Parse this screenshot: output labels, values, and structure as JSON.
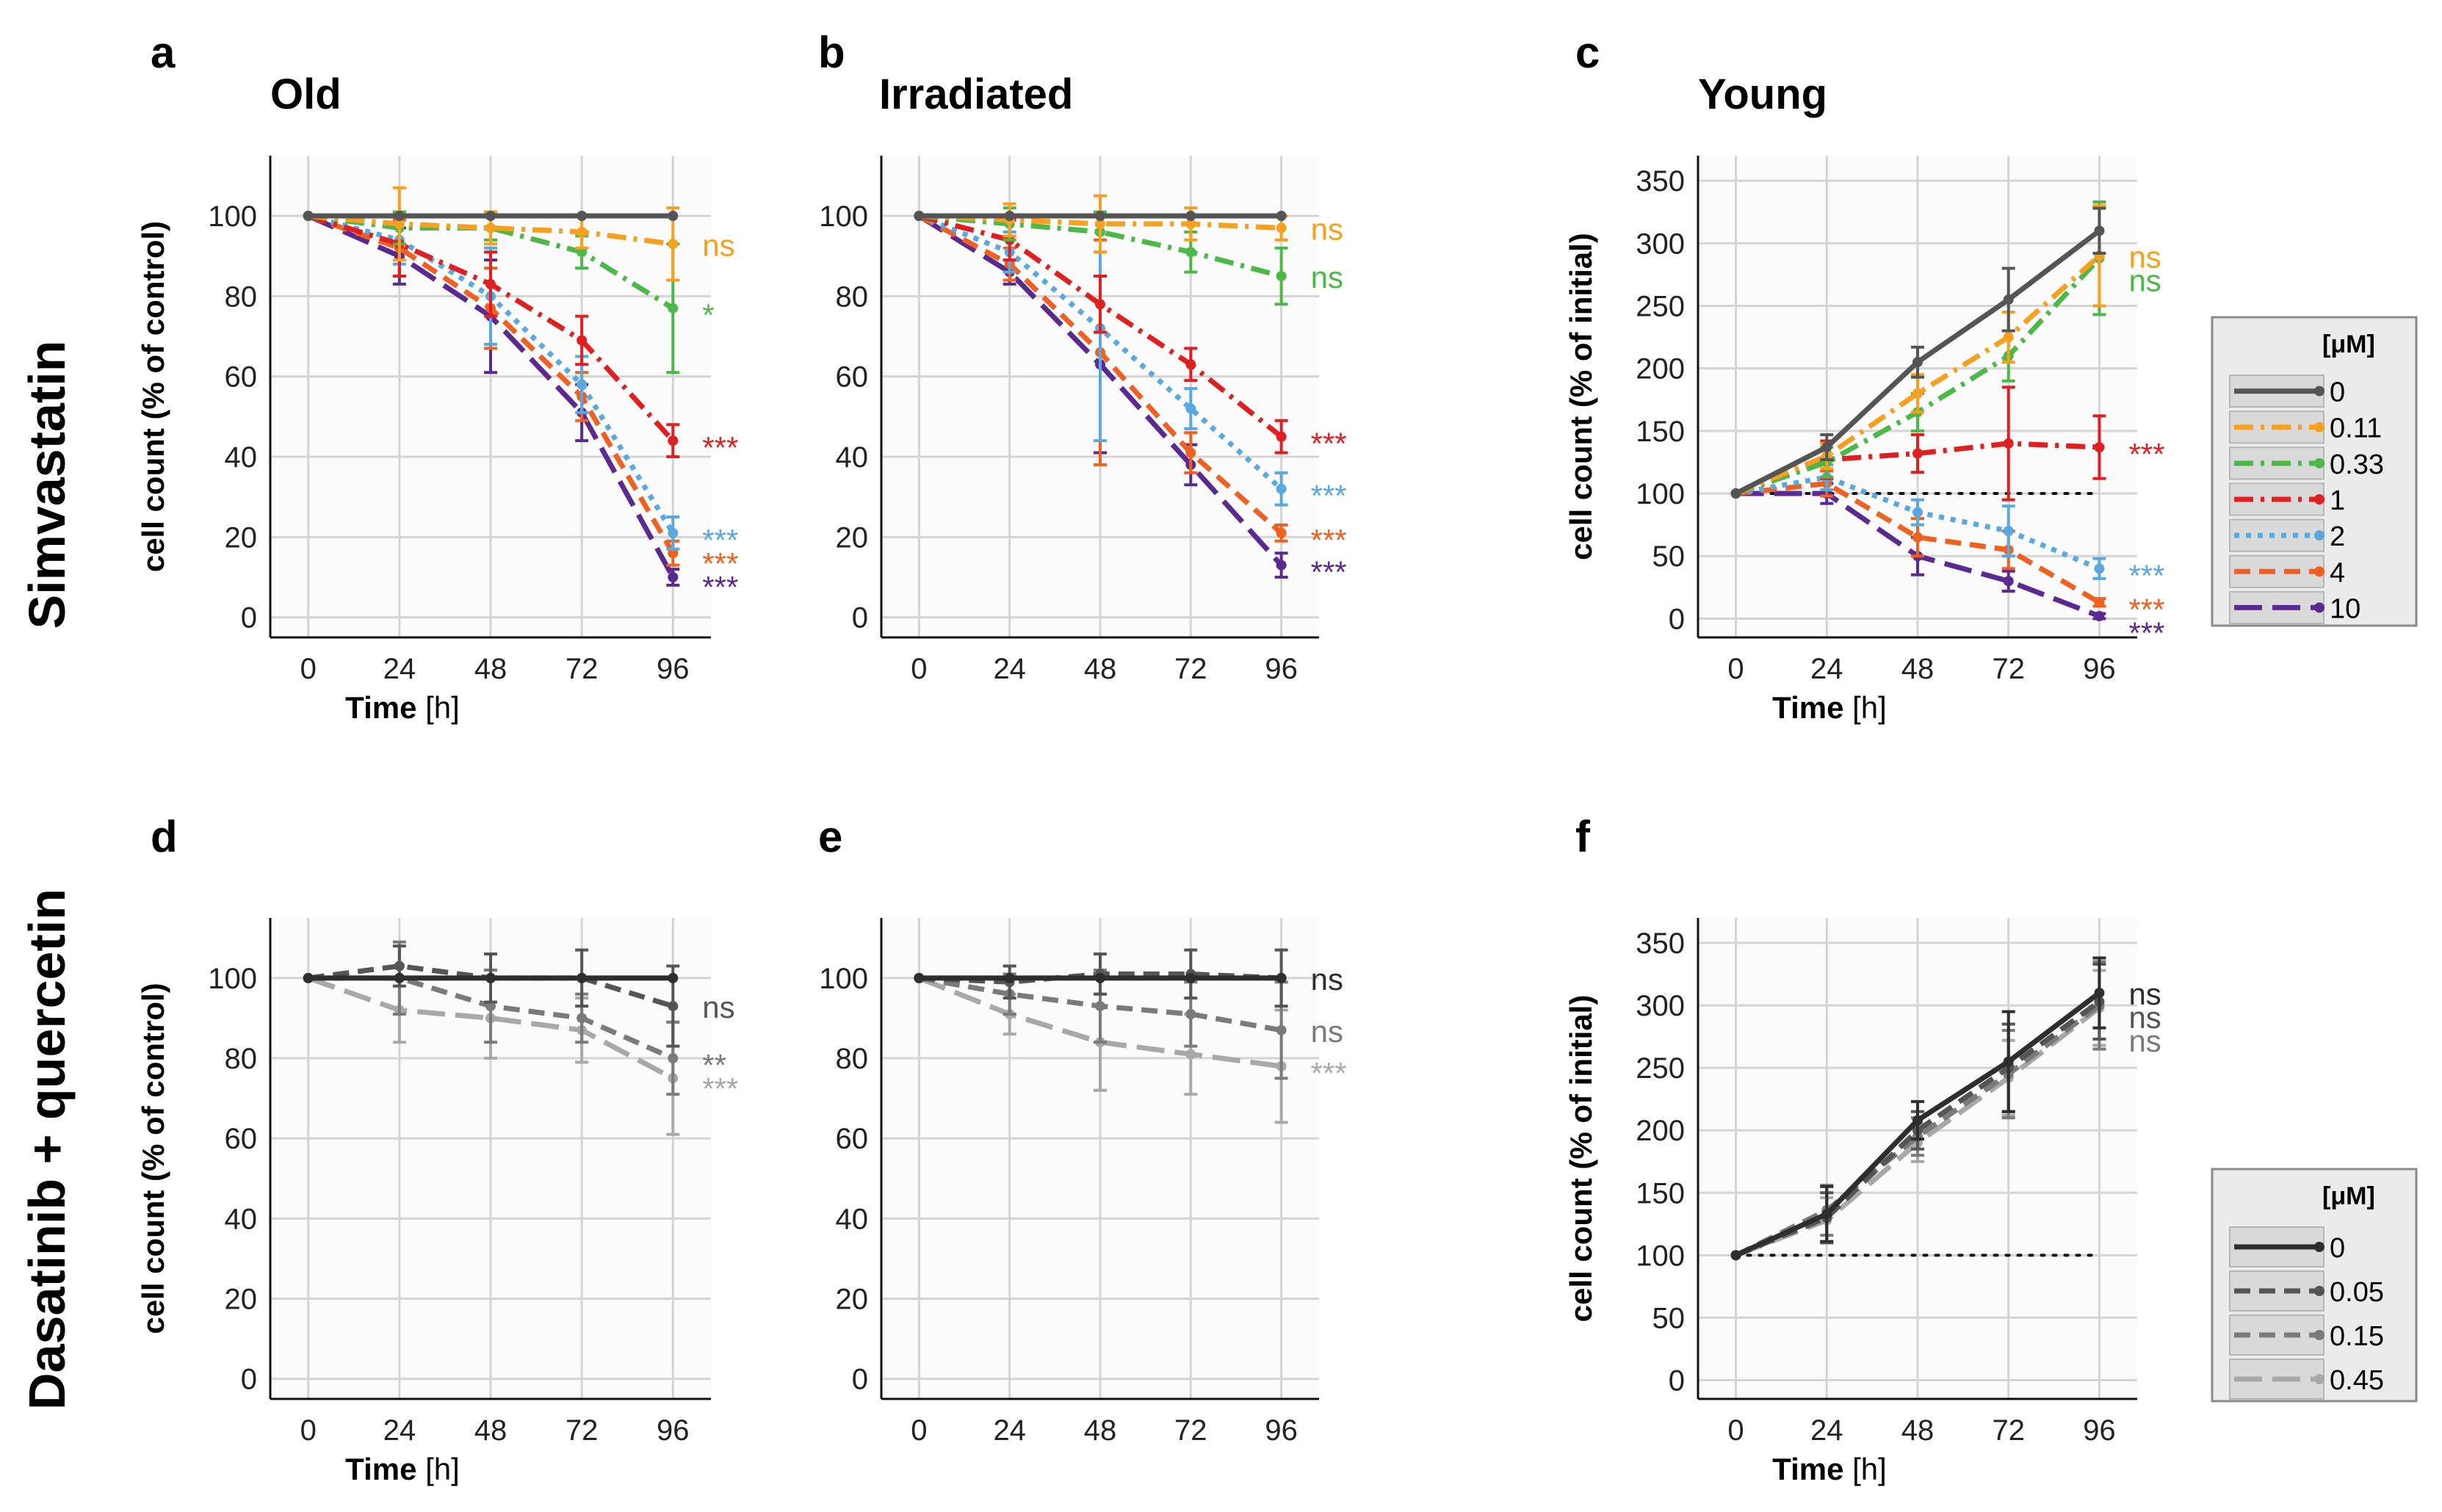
{
  "row_labels": [
    "Simvastatin",
    "Dasatinib + quercetin"
  ],
  "legends": [
    {
      "title": "[μM]",
      "items": [
        {
          "label": "0",
          "color": "#555555",
          "dash": "solid"
        },
        {
          "label": "0.11",
          "color": "#f5a020",
          "dash": "dashdot"
        },
        {
          "label": "0.33",
          "color": "#4cb848",
          "dash": "dashdot"
        },
        {
          "label": "1",
          "color": "#e02020",
          "dash": "dashdot"
        },
        {
          "label": "2",
          "color": "#5aa8e0",
          "dash": "dotted"
        },
        {
          "label": "4",
          "color": "#f06020",
          "dash": "dashed"
        },
        {
          "label": "10",
          "color": "#5a2a90",
          "dash": "longdash"
        }
      ]
    },
    {
      "title": "[μM]",
      "items": [
        {
          "label": "0",
          "color": "#2e2e2e",
          "dash": "solid"
        },
        {
          "label": "0.05",
          "color": "#555555",
          "dash": "dashed"
        },
        {
          "label": "0.15",
          "color": "#7a7a7a",
          "dash": "dashed"
        },
        {
          "label": "0.45",
          "color": "#a8a8a8",
          "dash": "longdash"
        }
      ]
    }
  ],
  "chart_data": [
    {
      "id": "a",
      "type": "line",
      "title": "Old",
      "xlabel_bold": "Time",
      "xlabel_unit": "[h]",
      "ylabel": "cell count (% of control)",
      "x": [
        0,
        24,
        48,
        72,
        96
      ],
      "xlim": [
        -10,
        106
      ],
      "ylim": [
        -5,
        115
      ],
      "yticks": [
        0,
        20,
        40,
        60,
        80,
        100
      ],
      "legend": 0,
      "series": [
        {
          "name": "0",
          "values": [
            100,
            100,
            100,
            100,
            100
          ],
          "errors": [
            0,
            0,
            0,
            0,
            0
          ],
          "sig": ""
        },
        {
          "name": "0.11",
          "values": [
            100,
            98,
            97,
            96,
            93
          ],
          "errors": [
            0,
            9,
            4,
            4,
            9
          ],
          "sig": "ns"
        },
        {
          "name": "0.33",
          "values": [
            100,
            97,
            97,
            91,
            77
          ],
          "errors": [
            0,
            4,
            3,
            4,
            16
          ],
          "sig": "*"
        },
        {
          "name": "1",
          "values": [
            100,
            93,
            83,
            69,
            44
          ],
          "errors": [
            0,
            8,
            8,
            6,
            4
          ],
          "sig": "***"
        },
        {
          "name": "2",
          "values": [
            100,
            94,
            80,
            58,
            21
          ],
          "errors": [
            0,
            6,
            12,
            7,
            4
          ],
          "sig": "***"
        },
        {
          "name": "4",
          "values": [
            100,
            92,
            77,
            55,
            16
          ],
          "errors": [
            0,
            7,
            10,
            6,
            3
          ],
          "sig": "***"
        },
        {
          "name": "10",
          "values": [
            100,
            90,
            75,
            51,
            10
          ],
          "errors": [
            0,
            7,
            14,
            7,
            2
          ],
          "sig": "***"
        }
      ]
    },
    {
      "id": "b",
      "type": "line",
      "title": "Irradiated",
      "xlabel_bold": "",
      "xlabel_unit": "",
      "ylabel": "",
      "x": [
        0,
        24,
        48,
        72,
        96
      ],
      "xlim": [
        -10,
        106
      ],
      "ylim": [
        -5,
        115
      ],
      "yticks": [
        0,
        20,
        40,
        60,
        80,
        100
      ],
      "legend": 0,
      "series": [
        {
          "name": "0",
          "values": [
            100,
            100,
            100,
            100,
            100
          ],
          "errors": [
            0,
            0,
            0,
            0,
            0
          ],
          "sig": ""
        },
        {
          "name": "0.11",
          "values": [
            100,
            99,
            98,
            98,
            97
          ],
          "errors": [
            0,
            4,
            7,
            4,
            3
          ],
          "sig": "ns"
        },
        {
          "name": "0.33",
          "values": [
            100,
            98,
            96,
            91,
            85
          ],
          "errors": [
            0,
            4,
            5,
            5,
            7
          ],
          "sig": "ns"
        },
        {
          "name": "1",
          "values": [
            100,
            94,
            78,
            63,
            45
          ],
          "errors": [
            0,
            5,
            7,
            4,
            4
          ],
          "sig": "***"
        },
        {
          "name": "2",
          "values": [
            100,
            91,
            72,
            52,
            32
          ],
          "errors": [
            0,
            5,
            28,
            5,
            4
          ],
          "sig": "***"
        },
        {
          "name": "4",
          "values": [
            100,
            88,
            66,
            41,
            21
          ],
          "errors": [
            0,
            4,
            28,
            5,
            2
          ],
          "sig": "***"
        },
        {
          "name": "10",
          "values": [
            100,
            86,
            63,
            38,
            13
          ],
          "errors": [
            0,
            3,
            22,
            5,
            3
          ],
          "sig": "***"
        }
      ]
    },
    {
      "id": "c",
      "type": "line",
      "title": "Young",
      "xlabel_bold": "Time",
      "xlabel_unit": "[h]",
      "ylabel": "cell count (% of initial)",
      "x": [
        0,
        24,
        48,
        72,
        96
      ],
      "xlim": [
        -10,
        106
      ],
      "ylim": [
        -15,
        370
      ],
      "yticks": [
        0,
        50,
        100,
        150,
        200,
        250,
        300,
        350
      ],
      "legend": 0,
      "reference_line": 100,
      "series": [
        {
          "name": "0",
          "values": [
            100,
            137,
            205,
            255,
            310
          ],
          "errors": [
            0,
            10,
            12,
            25,
            18
          ],
          "sig": ""
        },
        {
          "name": "0.11",
          "values": [
            100,
            130,
            180,
            225,
            290
          ],
          "errors": [
            0,
            10,
            15,
            20,
            40
          ],
          "sig": "ns"
        },
        {
          "name": "0.33",
          "values": [
            100,
            125,
            165,
            210,
            288
          ],
          "errors": [
            0,
            12,
            15,
            20,
            45
          ],
          "sig": "ns"
        },
        {
          "name": "1",
          "values": [
            100,
            127,
            132,
            140,
            137
          ],
          "errors": [
            0,
            15,
            15,
            45,
            25
          ],
          "sig": "***"
        },
        {
          "name": "2",
          "values": [
            100,
            113,
            85,
            70,
            40
          ],
          "errors": [
            0,
            10,
            10,
            20,
            8
          ],
          "sig": "***"
        },
        {
          "name": "4",
          "values": [
            100,
            108,
            65,
            55,
            13
          ],
          "errors": [
            0,
            10,
            15,
            15,
            3
          ],
          "sig": "***"
        },
        {
          "name": "10",
          "values": [
            100,
            100,
            50,
            30,
            2
          ],
          "errors": [
            0,
            8,
            15,
            8,
            2
          ],
          "sig": "***"
        }
      ]
    },
    {
      "id": "d",
      "type": "line",
      "title": "",
      "xlabel_bold": "Time",
      "xlabel_unit": "[h]",
      "ylabel": "cell count (% of control)",
      "x": [
        0,
        24,
        48,
        72,
        96
      ],
      "xlim": [
        -10,
        106
      ],
      "ylim": [
        -5,
        115
      ],
      "yticks": [
        0,
        20,
        40,
        60,
        80,
        100
      ],
      "legend": 1,
      "series": [
        {
          "name": "0",
          "values": [
            100,
            100,
            100,
            100,
            100
          ],
          "errors": [
            0,
            0,
            0,
            0,
            0
          ],
          "sig": ""
        },
        {
          "name": "0.05",
          "values": [
            100,
            103,
            100,
            100,
            93
          ],
          "errors": [
            0,
            5,
            6,
            7,
            10
          ],
          "sig": "ns"
        },
        {
          "name": "0.15",
          "values": [
            100,
            100,
            93,
            90,
            80
          ],
          "errors": [
            0,
            9,
            9,
            6,
            9
          ],
          "sig": "**"
        },
        {
          "name": "0.45",
          "values": [
            100,
            92,
            90,
            87,
            75
          ],
          "errors": [
            0,
            8,
            10,
            8,
            14
          ],
          "sig": "***"
        }
      ]
    },
    {
      "id": "e",
      "type": "line",
      "title": "",
      "xlabel_bold": "",
      "xlabel_unit": "",
      "ylabel": "",
      "x": [
        0,
        24,
        48,
        72,
        96
      ],
      "xlim": [
        -10,
        106
      ],
      "ylim": [
        -5,
        115
      ],
      "yticks": [
        0,
        20,
        40,
        60,
        80,
        100
      ],
      "legend": 1,
      "series": [
        {
          "name": "0",
          "values": [
            100,
            100,
            100,
            100,
            100
          ],
          "errors": [
            0,
            0,
            0,
            0,
            0
          ],
          "sig": "ns"
        },
        {
          "name": "0.05",
          "values": [
            100,
            99,
            101,
            101,
            100
          ],
          "errors": [
            0,
            4,
            5,
            6,
            7
          ],
          "sig": ""
        },
        {
          "name": "0.15",
          "values": [
            100,
            96,
            93,
            91,
            87
          ],
          "errors": [
            0,
            5,
            9,
            8,
            12
          ],
          "sig": "ns"
        },
        {
          "name": "0.45",
          "values": [
            100,
            91,
            84,
            81,
            78
          ],
          "errors": [
            0,
            5,
            12,
            10,
            14
          ],
          "sig": "***"
        }
      ]
    },
    {
      "id": "f",
      "type": "line",
      "title": "",
      "xlabel_bold": "Time",
      "xlabel_unit": "[h]",
      "ylabel": "cell count (% of initial)",
      "x": [
        0,
        24,
        48,
        72,
        96
      ],
      "xlim": [
        -10,
        106
      ],
      "ylim": [
        -15,
        370
      ],
      "yticks": [
        0,
        50,
        100,
        150,
        200,
        250,
        300,
        350
      ],
      "legend": 1,
      "reference_line": 100,
      "series": [
        {
          "name": "0",
          "values": [
            100,
            133,
            208,
            255,
            310
          ],
          "errors": [
            0,
            22,
            15,
            40,
            28
          ],
          "sig": "ns"
        },
        {
          "name": "0.05",
          "values": [
            100,
            130,
            200,
            250,
            303
          ],
          "errors": [
            0,
            20,
            15,
            35,
            30
          ],
          "sig": "ns"
        },
        {
          "name": "0.15",
          "values": [
            100,
            136,
            195,
            245,
            300
          ],
          "errors": [
            0,
            20,
            15,
            35,
            35
          ],
          "sig": "ns"
        },
        {
          "name": "0.45",
          "values": [
            100,
            128,
            190,
            242,
            298
          ],
          "errors": [
            0,
            18,
            15,
            30,
            30
          ],
          "sig": ""
        }
      ]
    }
  ]
}
